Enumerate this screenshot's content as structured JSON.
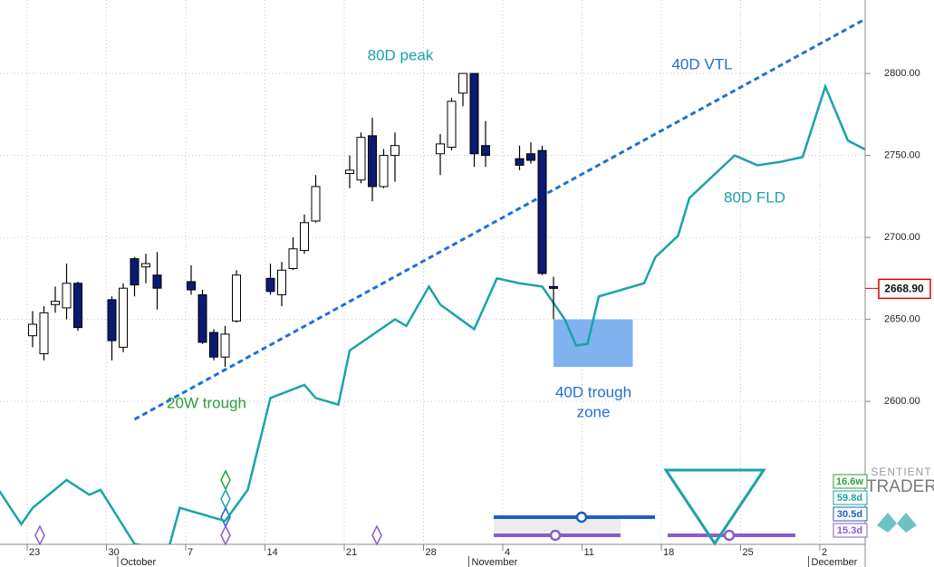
{
  "chart_data": {
    "type": "candlestick",
    "x": [
      "09-23",
      "09-24",
      "09-25",
      "09-26",
      "09-27",
      "09-30",
      "10-01",
      "10-02",
      "10-03",
      "10-04",
      "10-07",
      "10-08",
      "10-09",
      "10-10",
      "10-11",
      "10-14",
      "10-15",
      "10-16",
      "10-17",
      "10-18",
      "10-21",
      "10-22",
      "10-23",
      "10-24",
      "10-25",
      "10-29",
      "10-30",
      "10-31",
      "11-01",
      "11-02",
      "11-05",
      "11-06",
      "11-07",
      "11-08"
    ],
    "open": [
      2640,
      2629,
      2659,
      2657,
      2672,
      2662,
      2633,
      2687,
      2682,
      2677,
      2673,
      2665,
      2642,
      2627,
      2649,
      2675,
      2665,
      2681,
      2692,
      2710,
      2739,
      2735,
      2762,
      2731,
      2750,
      2751,
      2755,
      2788,
      2800,
      2756,
      2748,
      2751,
      2753,
      2670
    ],
    "high": [
      2655,
      2658,
      2670,
      2684,
      2673,
      2664,
      2672,
      2688,
      2690,
      2691,
      2683,
      2668,
      2644,
      2646,
      2680,
      2684,
      2685,
      2700,
      2714,
      2738,
      2750,
      2764,
      2773,
      2754,
      2764,
      2763,
      2785,
      2800,
      2800,
      2771,
      2756,
      2758,
      2756,
      2676
    ],
    "low": [
      2633,
      2625,
      2654,
      2650,
      2643,
      2625,
      2630,
      2664,
      2672,
      2656,
      2665,
      2635,
      2625,
      2621,
      2648,
      2665,
      2658,
      2680,
      2690,
      2709,
      2730,
      2733,
      2722,
      2730,
      2734,
      2738,
      2753,
      2780,
      2743,
      2743,
      2741,
      2745,
      2677,
      2650
    ],
    "close": [
      2647,
      2654,
      2661,
      2672,
      2645,
      2637,
      2669,
      2671,
      2684,
      2669,
      2668,
      2636,
      2627,
      2641,
      2677,
      2667,
      2680,
      2693,
      2709,
      2731,
      2741,
      2761,
      2731,
      2750,
      2756,
      2757,
      2783,
      2800,
      2751,
      2750,
      2744,
      2747,
      2678,
      2668.9
    ],
    "up_color": "#ffffff",
    "down_color": "#0d1a73",
    "ylim": [
      2513.3,
      2844.8
    ],
    "yticks": [
      {
        "value": 2600,
        "label": "2600.00"
      },
      {
        "value": 2650,
        "label": "2650.00"
      },
      {
        "value": 2700,
        "label": "2700.00"
      },
      {
        "value": 2750,
        "label": "2750.00"
      },
      {
        "value": 2800,
        "label": "2800.00"
      }
    ],
    "xticks": [
      {
        "value": "09-23",
        "label": "23"
      },
      {
        "value": "09-30",
        "label": "30"
      },
      {
        "value": "10-07",
        "label": "7"
      },
      {
        "value": "10-14",
        "label": "14"
      },
      {
        "value": "10-21",
        "label": "21"
      },
      {
        "value": "10-28",
        "label": "28"
      },
      {
        "value": "11-04",
        "label": "4"
      },
      {
        "value": "11-11",
        "label": "11"
      },
      {
        "value": "11-18",
        "label": "18"
      },
      {
        "value": "11-25",
        "label": "25"
      },
      {
        "value": "12-02",
        "label": "2"
      }
    ],
    "months": [
      {
        "value": "10-01",
        "label": "October"
      },
      {
        "value": "11-01",
        "label": "November"
      },
      {
        "value": "12-01",
        "label": "December"
      }
    ],
    "grid": true,
    "last_price": {
      "value": 2668.9,
      "label": "2668.90"
    },
    "lines": [
      {
        "name": "80D FLD",
        "color": "#1aa3a8",
        "dashed": false,
        "x": [
          "09-20",
          "09-22",
          "09-23",
          "09-26",
          "09-28",
          "09-29",
          "10-02",
          "10-05",
          "10-06",
          "10-10",
          "10-12",
          "10-14",
          "10-17",
          "10-18",
          "10-20",
          "10-21",
          "10-25",
          "10-26",
          "10-28",
          "10-29",
          "11-01",
          "11-03",
          "11-05",
          "11-07",
          "11-09",
          "11-10",
          "11-11",
          "11-12",
          "11-16",
          "11-17",
          "11-19",
          "11-20",
          "11-24",
          "11-26",
          "11-28",
          "11-30",
          "12-02",
          "12-04",
          "12-06"
        ],
        "values": [
          2546,
          2525,
          2535,
          2552,
          2543,
          2546,
          2513,
          2510,
          2535,
          2527,
          2546,
          2602,
          2610,
          2602,
          2598,
          2631,
          2650,
          2646,
          2670,
          2659,
          2644,
          2675,
          2672,
          2670,
          2650,
          2634,
          2635,
          2664,
          2672,
          2688,
          2701,
          2724,
          2750,
          2744,
          2746,
          2749,
          2792,
          2759,
          2752
        ]
      },
      {
        "name": "40D VTL",
        "color": "#1f6fd6",
        "dashed": true,
        "x": [
          "10-02",
          "12-06"
        ],
        "values": [
          2589,
          2835
        ]
      }
    ],
    "annotations": [
      "80D peak",
      "20W trough"
    ],
    "trough_zone": {
      "label": [
        "40D trough",
        "zone"
      ],
      "start": "11-08",
      "end": "11-15",
      "low": 2621,
      "high": 2650,
      "color": "#7fb2ee"
    },
    "cycle_labels": [
      {
        "label": "16.6w",
        "color": "#2a9d3a"
      },
      {
        "label": "59.8d",
        "color": "#1aa3a8"
      },
      {
        "label": "30.5d",
        "color": "#1f5fbf"
      },
      {
        "label": "15.3d",
        "color": "#8a5cc9"
      }
    ],
    "brand": [
      "SENTIENT",
      "TRADER"
    ]
  }
}
